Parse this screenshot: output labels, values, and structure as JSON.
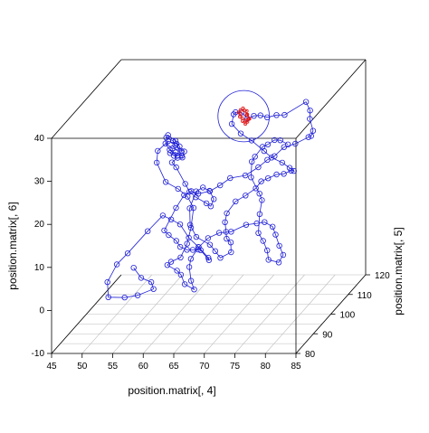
{
  "chart_data": {
    "type": "scatter",
    "style": "scatterplot3d",
    "xlabel": "position.matrix[, 4]",
    "ylabel": "position.matrix[, 5]",
    "zlabel": "position.matrix[, 6]",
    "xlim": [
      45,
      85
    ],
    "ylim": [
      80,
      120
    ],
    "zlim": [
      -10,
      40
    ],
    "x_ticks": [
      "45",
      "50",
      "55",
      "60",
      "65",
      "70",
      "75",
      "80",
      "85"
    ],
    "y_ticks": [
      "80",
      "90",
      "100",
      "110",
      "120"
    ],
    "z_ticks": [
      "-10",
      "0",
      "10",
      "20",
      "30",
      "40"
    ],
    "grid": "floor",
    "colors": {
      "series_main": "#1f1fd6",
      "series_focus": "#e01818",
      "box": "#000000",
      "grid": "#bdbdbd"
    },
    "series": [
      {
        "color": "#1f1fd6",
        "marker": "open-circle",
        "connected": true,
        "points": [
          [
            55.3,
            91.0,
            4.9
          ],
          [
            57.5,
            87.6,
            4.1
          ],
          [
            59.2,
            87.4,
            3.2
          ],
          [
            60.2,
            85.2,
            2.6
          ],
          [
            58.2,
            83.1,
            2.1
          ],
          [
            55.7,
            84.4,
            1.0
          ],
          [
            53.8,
            81.7,
            2.3
          ],
          [
            52.6,
            85.4,
            4.1
          ],
          [
            53.0,
            89.4,
            6.4
          ],
          [
            54.3,
            91.1,
            8.2
          ],
          [
            56.6,
            94.5,
            11.8
          ],
          [
            58.3,
            97.2,
            14.2
          ],
          [
            60.8,
            93.2,
            15.1
          ],
          [
            63.1,
            90.3,
            15.3
          ],
          [
            65.4,
            87.2,
            13.6
          ],
          [
            67.7,
            84.7,
            12.6
          ],
          [
            70.0,
            82.3,
            11.2
          ],
          [
            70.5,
            80.9,
            11.3
          ],
          [
            68.2,
            84.2,
            12.1
          ],
          [
            67.4,
            85.6,
            11.6
          ],
          [
            66.0,
            87.4,
            10.7
          ],
          [
            64.8,
            88.3,
            10.3
          ],
          [
            63.2,
            90.0,
            10.2
          ],
          [
            62.0,
            92.0,
            10.7
          ],
          [
            60.6,
            92.5,
            11.8
          ],
          [
            59.4,
            94.2,
            12.1
          ],
          [
            60.1,
            98.5,
            15.4
          ],
          [
            61.5,
            98.2,
            18.5
          ],
          [
            63.3,
            96.0,
            20.4
          ],
          [
            65.2,
            93.4,
            21.0
          ],
          [
            67.4,
            92.3,
            22.1
          ],
          [
            69.1,
            92.2,
            23.5
          ],
          [
            71.0,
            91.3,
            25.6
          ],
          [
            73.5,
            91.3,
            26.2
          ],
          [
            75.1,
            93.1,
            27.3
          ],
          [
            76.7,
            92.7,
            29.2
          ],
          [
            77.9,
            92.6,
            30.1
          ],
          [
            79.2,
            93.5,
            31.8
          ],
          [
            80.5,
            95.4,
            31.7
          ],
          [
            82.2,
            97.0,
            32.5
          ],
          [
            82.9,
            96.1,
            33.2
          ],
          [
            83.1,
            96.5,
            34.2
          ],
          [
            81.7,
            99.5,
            35.6
          ],
          [
            80.9,
            102.5,
            36.2
          ],
          [
            79.8,
            104.0,
            37.5
          ],
          [
            76.8,
            102.2,
            35.3
          ],
          [
            75.2,
            103.2,
            34.8
          ],
          [
            73.5,
            103.8,
            34.0
          ],
          [
            71.8,
            105.9,
            33.5
          ],
          [
            70.3,
            107.4,
            32.7
          ],
          [
            68.7,
            109.3,
            31.2
          ],
          [
            66.7,
            113.0,
            30.9
          ],
          [
            65.4,
            114.1,
            30.5
          ],
          [
            64.7,
            115.4,
            29.4
          ],
          [
            64.8,
            114.0,
            27.8
          ],
          [
            67.1,
            111.1,
            26.9
          ],
          [
            69.5,
            108.9,
            26.3
          ],
          [
            72.4,
            105.9,
            25.2
          ],
          [
            74.2,
            103.9,
            24.6
          ],
          [
            76.1,
            103.3,
            23.7
          ],
          [
            77.2,
            103.7,
            22.3
          ],
          [
            77.1,
            106.5,
            20.3
          ],
          [
            75.8,
            109.5,
            19.0
          ],
          [
            74.0,
            111.6,
            17.3
          ],
          [
            71.9,
            114.8,
            15.7
          ],
          [
            70.2,
            115.9,
            14.3
          ],
          [
            68.7,
            117.2,
            13.0
          ],
          [
            67.7,
            117.6,
            11.2
          ],
          [
            66.2,
            117.0,
            9.8
          ],
          [
            64.8,
            116.2,
            8.8
          ],
          [
            64.7,
            111.5,
            8.2
          ],
          [
            65.4,
            108.0,
            7.7
          ],
          [
            66.6,
            104.4,
            7.1
          ],
          [
            67.8,
            100.5,
            7.3
          ],
          [
            69.4,
            97.3,
            7.9
          ],
          [
            70.3,
            94.3,
            7.0
          ],
          [
            68.5,
            94.5,
            5.6
          ],
          [
            67.0,
            96.8,
            6.1
          ],
          [
            65.5,
            99.0,
            6.6
          ],
          [
            62.9,
            100.3,
            7.8
          ],
          [
            60.7,
            104.5,
            8.7
          ],
          [
            59.6,
            108.1,
            10.9
          ],
          [
            59.5,
            112.1,
            13.0
          ],
          [
            60.3,
            113.2,
            13.4
          ],
          [
            62.2,
            110.4,
            13.9
          ],
          [
            63.7,
            107.5,
            13.3
          ],
          [
            63.5,
            106.5,
            12.1
          ],
          [
            62.3,
            108.2,
            12.0
          ],
          [
            60.0,
            110.2,
            12.5
          ],
          [
            58.4,
            112.2,
            12.9
          ],
          [
            56.7,
            115.7,
            13.1
          ],
          [
            54.5,
            118.2,
            15.8
          ],
          [
            54.1,
            117.2,
            17.4
          ],
          [
            55.9,
            114.1,
            19.9
          ],
          [
            57.4,
            111.6,
            21.1
          ],
          [
            57.7,
            111.6,
            22.5
          ],
          [
            55.4,
            114.5,
            22.6
          ],
          [
            54.7,
            115.7,
            23.1
          ],
          [
            53.5,
            116.0,
            23.7
          ],
          [
            54.0,
            115.3,
            24.6
          ],
          [
            56.0,
            112.6,
            24.5
          ],
          [
            57.4,
            110.0,
            24.4
          ],
          [
            57.5,
            110.7,
            23.0
          ],
          [
            55.4,
            113.0,
            22.6
          ],
          [
            53.4,
            115.9,
            22.4
          ],
          [
            54.9,
            113.1,
            22.2
          ],
          [
            56.8,
            111.0,
            21.8
          ],
          [
            55.7,
            112.7,
            21.0
          ],
          [
            54.3,
            115.4,
            20.4
          ],
          [
            55.7,
            113.7,
            21.3
          ],
          [
            57.6,
            110.5,
            22.0
          ],
          [
            55.8,
            113.8,
            23.3
          ],
          [
            54.0,
            115.3,
            23.2
          ],
          [
            52.6,
            114.3,
            21.4
          ],
          [
            53.0,
            112.3,
            19.6
          ],
          [
            55.1,
            110.1,
            16.1
          ],
          [
            57.5,
            108.8,
            15.1
          ],
          [
            59.3,
            107.9,
            13.7
          ],
          [
            60.8,
            106.1,
            11.9
          ],
          [
            61.2,
            103.2,
            8.6
          ],
          [
            61.3,
            100.6,
            6.1
          ],
          [
            60.6,
            99.3,
            3.5
          ],
          [
            59.0,
            99.5,
            2.4
          ],
          [
            58.3,
            99.8,
            1.5
          ],
          [
            60.2,
            98.7,
            0.7
          ],
          [
            61.5,
            96.4,
            0.8
          ],
          [
            62.8,
            94.0,
            -0.3
          ],
          [
            64.8,
            92.4,
            -0.8
          ],
          [
            64.1,
            93.1,
            0.9
          ],
          [
            62.8,
            96.6,
            2.5
          ],
          [
            62.5,
            98.6,
            3.5
          ],
          [
            63.1,
            101.0,
            5.1
          ],
          [
            64.0,
            103.2,
            6.2
          ],
          [
            65.3,
            105.0,
            6.6
          ],
          [
            67.4,
            104.5,
            7.1
          ],
          [
            69.9,
            104.3,
            8.8
          ],
          [
            72.2,
            102.4,
            10.0
          ],
          [
            74.1,
            100.2,
            11.3
          ],
          [
            75.9,
            98.5,
            11.0
          ],
          [
            77.1,
            96.0,
            10.3
          ],
          [
            78.4,
            93.6,
            8.8
          ],
          [
            79.6,
            91.6,
            7.6
          ],
          [
            78.9,
            91.5,
            5.9
          ],
          [
            76.6,
            93.7,
            5.5
          ],
          [
            75.7,
            96.1,
            6.6
          ],
          [
            74.4,
            98.3,
            7.8
          ],
          [
            72.8,
            101.2,
            8.3
          ],
          [
            71.7,
            105.8,
            10.6
          ],
          [
            71.3,
            108.5,
            12.6
          ],
          [
            70.7,
            109.2,
            13.8
          ],
          [
            68.9,
            110.7,
            16.9
          ],
          [
            68.3,
            113.2,
            19.4
          ],
          [
            68.6,
            114.0,
            20.2
          ],
          [
            69.6,
            114.8,
            22.1
          ],
          [
            70.3,
            115.4,
            22.4
          ],
          [
            71.5,
            115.0,
            23.6
          ],
          [
            72.8,
            113.8,
            24.1
          ],
          [
            74.6,
            111.9,
            24.0
          ]
        ]
      },
      {
        "color": "#e01818",
        "marker": "dashed-loop",
        "connected": true,
        "points": [
          [
            66.5,
            114.5,
            31.2
          ],
          [
            67.3,
            113.8,
            30.9
          ],
          [
            67.4,
            113.4,
            30.2
          ],
          [
            68.0,
            112.9,
            29.5
          ],
          [
            67.6,
            113.1,
            28.7
          ],
          [
            67.2,
            113.4,
            28.1
          ],
          [
            66.6,
            113.9,
            28.5
          ],
          [
            66.0,
            114.4,
            29.3
          ],
          [
            65.7,
            114.8,
            30.1
          ],
          [
            66.1,
            114.5,
            30.8
          ],
          [
            66.9,
            113.8,
            31.0
          ],
          [
            67.6,
            113.1,
            30.4
          ],
          [
            67.9,
            112.9,
            29.6
          ],
          [
            67.3,
            113.4,
            28.9
          ],
          [
            66.5,
            114.0,
            29.2
          ],
          [
            66.1,
            114.4,
            29.9
          ]
        ]
      }
    ],
    "circle_annotation": {
      "center": [
        66.8,
        113.8,
        29.7
      ],
      "radius": 4.2
    }
  }
}
